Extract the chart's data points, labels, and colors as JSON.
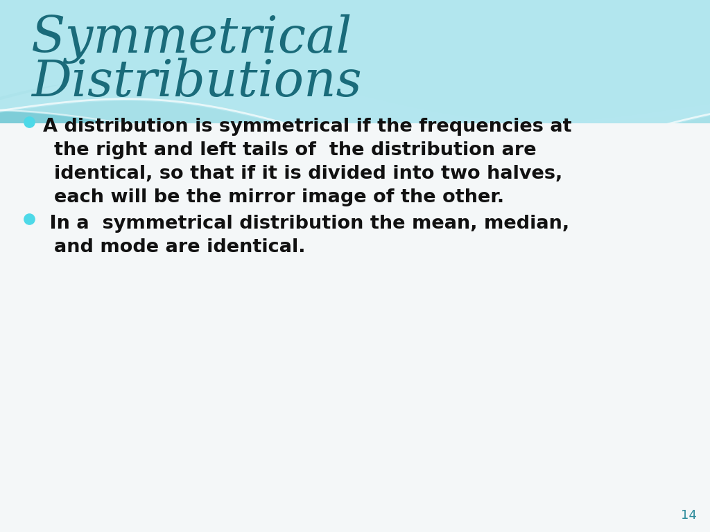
{
  "title_line1": "Symmetrical",
  "title_line2": "Distributions",
  "title_color": "#1a6b7a",
  "bullet_color": "#4dd9e8",
  "bullet1_line1": "A distribution is symmetrical if the frequencies at",
  "bullet1_line2": "the right and left tails of  the distribution are",
  "bullet1_line3": "identical, so that if it is divided into two halves,",
  "bullet1_line4": "each will be the mirror image of the other.",
  "bullet2_line1": " In a  symmetrical distribution the mean, median,",
  "bullet2_line2": "and mode are identical.",
  "body_text_color": "#111111",
  "page_number": "14",
  "page_number_color": "#2a8a9a",
  "bg_color": "#f4f7f8",
  "wave_dark": "#6ecbd8",
  "wave_mid": "#90d8e4",
  "wave_light": "#b8eaf2",
  "wave_vlight": "#d4f2f8",
  "wave_white": "#e8f8fc"
}
